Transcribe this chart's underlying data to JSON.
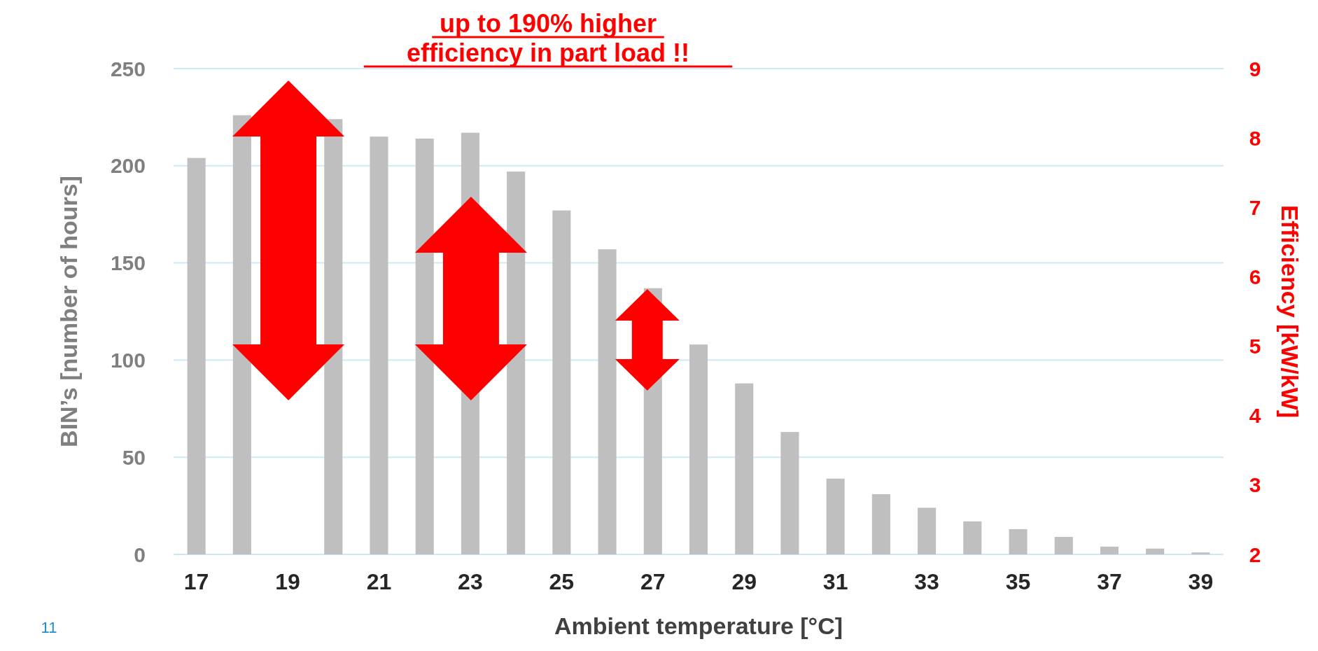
{
  "chart_data": {
    "type": "bar",
    "title": "up to 190% higher\nefficiency  in part load !!",
    "categories": [
      "17",
      null,
      "19",
      null,
      "21",
      null,
      "23",
      null,
      "25",
      null,
      "27",
      null,
      "29",
      null,
      "31",
      null,
      "33",
      null,
      "35",
      null,
      "37",
      null,
      "39"
    ],
    "values": [
      204,
      226,
      null,
      224,
      215,
      214,
      217,
      197,
      177,
      157,
      137,
      108,
      88,
      63,
      39,
      31,
      24,
      17,
      13,
      9,
      4,
      3,
      1
    ],
    "color": "#bfbfbf",
    "xlabel": "Ambient temperature [°C]",
    "ylabel": "BIN’s [number of hours]",
    "y2label": "Efficiency [kW/kW]",
    "ylim": [
      0,
      250
    ],
    "yticks": [
      0,
      50,
      100,
      150,
      200,
      250
    ],
    "y2lim": [
      2,
      9
    ],
    "y2ticks": [
      2,
      3,
      4,
      5,
      6,
      7,
      8,
      9
    ],
    "grid": "y",
    "annotations": [
      "11"
    ]
  }
}
